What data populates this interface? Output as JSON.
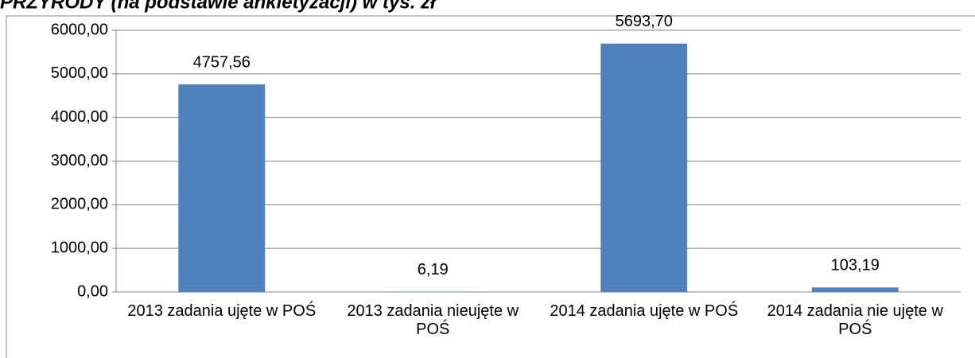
{
  "chart_data": {
    "type": "bar",
    "title": "PRZYRODY (na podstawie ankietyzacji) w tys. zł",
    "categories": [
      "2013 zadania ujęte w POŚ",
      "2013 zadania nieujęte w POŚ",
      "2014 zadania ujęte w POŚ",
      "2014 zadania nie ujęte w POŚ"
    ],
    "values": [
      4757.56,
      6.19,
      5693.7,
      103.19
    ],
    "value_labels": [
      "4757,56",
      "6,19",
      "5693,70",
      "103,19"
    ],
    "color": "#4f81bd",
    "ylim": [
      0,
      6000
    ],
    "yticks": [
      {
        "value": 0,
        "label": "0,00"
      },
      {
        "value": 1000,
        "label": "1000,00"
      },
      {
        "value": 2000,
        "label": "2000,00"
      },
      {
        "value": 3000,
        "label": "3000,00"
      },
      {
        "value": 4000,
        "label": "4000,00"
      },
      {
        "value": 5000,
        "label": "5000,00"
      },
      {
        "value": 6000,
        "label": "6000,00"
      }
    ],
    "grid": true
  }
}
